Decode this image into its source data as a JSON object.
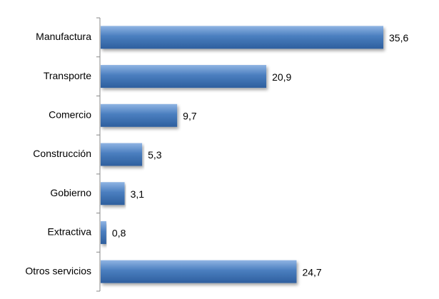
{
  "chart_data": {
    "type": "bar",
    "orientation": "horizontal",
    "categories": [
      "Manufactura",
      "Transporte",
      "Comercio",
      "Construcción",
      "Gobierno",
      "Extractiva",
      "Otros servicios"
    ],
    "values": [
      35.6,
      20.9,
      9.7,
      5.3,
      3.1,
      0.8,
      24.7
    ],
    "value_labels": [
      "35,6",
      "20,9",
      "9,7",
      "5,3",
      "3,1",
      "0,8",
      "24,7"
    ],
    "color": "#4a7ebf"
  }
}
